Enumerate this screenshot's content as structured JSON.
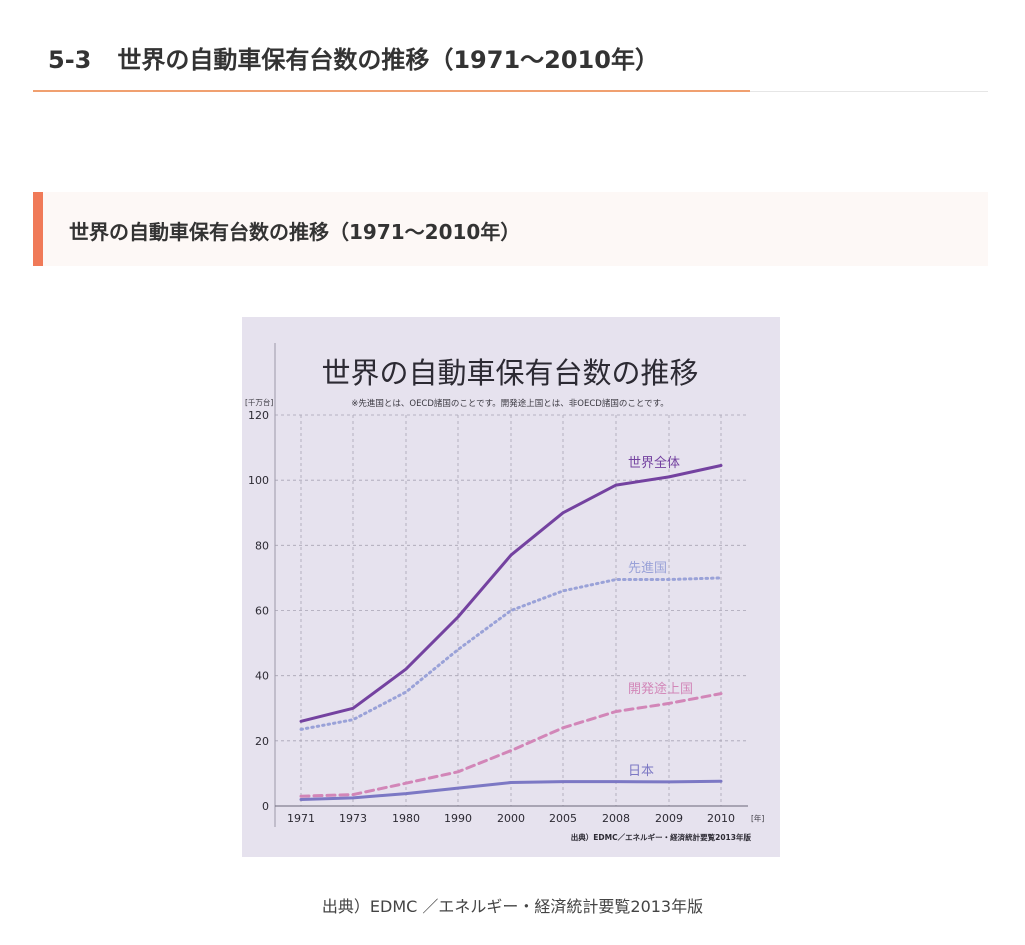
{
  "page": {
    "heading_number": "5-3",
    "heading_text": "世界の自動車保有台数の推移（1971〜2010年）",
    "subheading": "世界の自動車保有台数の推移（1971〜2010年）",
    "caption": "出典）EDMC ／エネルギー・経済統計要覧2013年版"
  },
  "chart_data": {
    "type": "line",
    "title": "世界の自動車保有台数の推移",
    "subtitle": "※先進国とは、OECD諸国のことです。開発途上国とは、非OECD諸国のことです。",
    "ylabel": "[千万台]",
    "xlabel": "[年]",
    "source": "出典）EDMC／エネルギー・経済統計要覧2013年版",
    "categories": [
      "1971",
      "1973",
      "1980",
      "1990",
      "2000",
      "2005",
      "2008",
      "2009",
      "2010"
    ],
    "ylim": [
      0,
      120
    ],
    "yticks": [
      0,
      20,
      40,
      60,
      80,
      100,
      120
    ],
    "grid": true,
    "series": [
      {
        "name": "世界全体",
        "values": [
          26,
          30,
          42,
          58,
          77,
          90,
          98.5,
          101,
          104.5
        ],
        "color": "#7442a0",
        "style": "solid"
      },
      {
        "name": "先進国",
        "values": [
          23.5,
          26.5,
          35,
          48,
          60,
          66,
          69.5,
          69.5,
          70
        ],
        "color": "#9aa2d8",
        "style": "dotted"
      },
      {
        "name": "開発途上国",
        "values": [
          3,
          3.5,
          7,
          10.5,
          17,
          24,
          29,
          31.5,
          34.5
        ],
        "color": "#d286b8",
        "style": "dashed"
      },
      {
        "name": "日本",
        "values": [
          2,
          2.5,
          3.8,
          5.5,
          7.2,
          7.5,
          7.5,
          7.4,
          7.6
        ],
        "color": "#7c78c4",
        "style": "solid"
      }
    ]
  }
}
